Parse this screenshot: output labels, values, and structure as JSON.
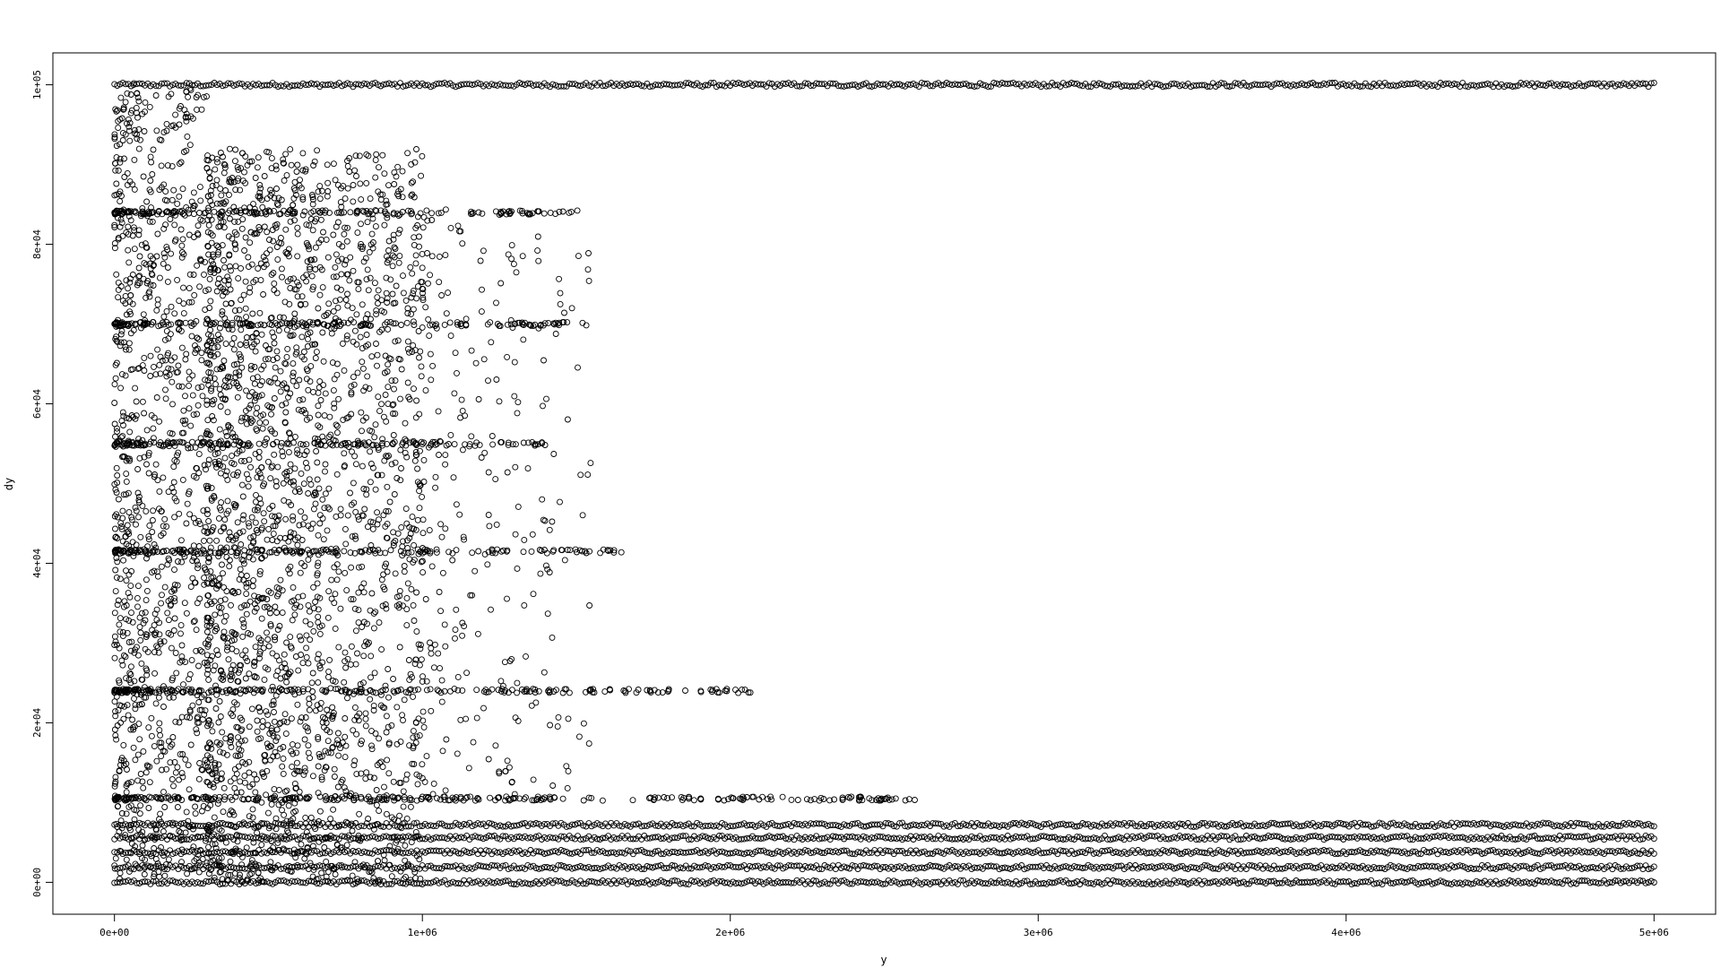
{
  "chart_data": {
    "type": "scatter",
    "title": "",
    "xlabel": "y",
    "ylabel": "dy",
    "xlim": [
      -200000,
      5200000
    ],
    "ylim": [
      -4000,
      104000
    ],
    "x_ticks": [
      0,
      1000000,
      2000000,
      3000000,
      4000000,
      5000000
    ],
    "x_tick_labels": [
      "0e+00",
      "1e+06",
      "2e+06",
      "3e+06",
      "4e+06",
      "5e+06"
    ],
    "y_ticks": [
      0,
      20000,
      40000,
      60000,
      80000,
      100000
    ],
    "y_tick_labels": [
      "0e+00",
      "2e+04",
      "4e+04",
      "6e+04",
      "8e+04",
      "1e+05"
    ],
    "grid": false,
    "legend": "none",
    "marker": "open-circle",
    "color": "#000000",
    "approximation": "dense point cloud; values estimated from axes",
    "series": [
      {
        "kind": "horizontal-band",
        "y": 100000,
        "x_range": [
          0,
          5000000
        ]
      },
      {
        "kind": "horizontal-band",
        "y": 84000,
        "x_range": [
          0,
          1530000
        ]
      },
      {
        "kind": "horizontal-band",
        "y": 70000,
        "x_range": [
          0,
          1530000
        ]
      },
      {
        "kind": "horizontal-band",
        "y": 55000,
        "x_range": [
          0,
          1400000
        ]
      },
      {
        "kind": "horizontal-band",
        "y": 41500,
        "x_range": [
          0,
          1680000
        ]
      },
      {
        "kind": "horizontal-band",
        "y": 24000,
        "x_range": [
          0,
          2100000
        ]
      },
      {
        "kind": "horizontal-band",
        "y": 10500,
        "x_range": [
          0,
          2600000
        ]
      },
      {
        "kind": "horizontal-band",
        "y": 7200,
        "x_range": [
          0,
          5000000
        ]
      },
      {
        "kind": "horizontal-band",
        "y": 5600,
        "x_range": [
          0,
          5000000
        ]
      },
      {
        "kind": "horizontal-band",
        "y": 3800,
        "x_range": [
          0,
          5000000
        ]
      },
      {
        "kind": "horizontal-band",
        "y": 1900,
        "x_range": [
          0,
          5000000
        ]
      },
      {
        "kind": "horizontal-band",
        "y": 0,
        "x_range": [
          0,
          5000000
        ]
      },
      {
        "kind": "cloud",
        "x_range": [
          0,
          300000
        ],
        "y_range": [
          0,
          100000
        ]
      },
      {
        "kind": "cloud",
        "x_range": [
          300000,
          1000000
        ],
        "y_range": [
          0,
          92000
        ]
      },
      {
        "kind": "sparse-cloud",
        "x_range": [
          1000000,
          1550000
        ],
        "y_range": [
          10000,
          85000
        ]
      }
    ]
  }
}
